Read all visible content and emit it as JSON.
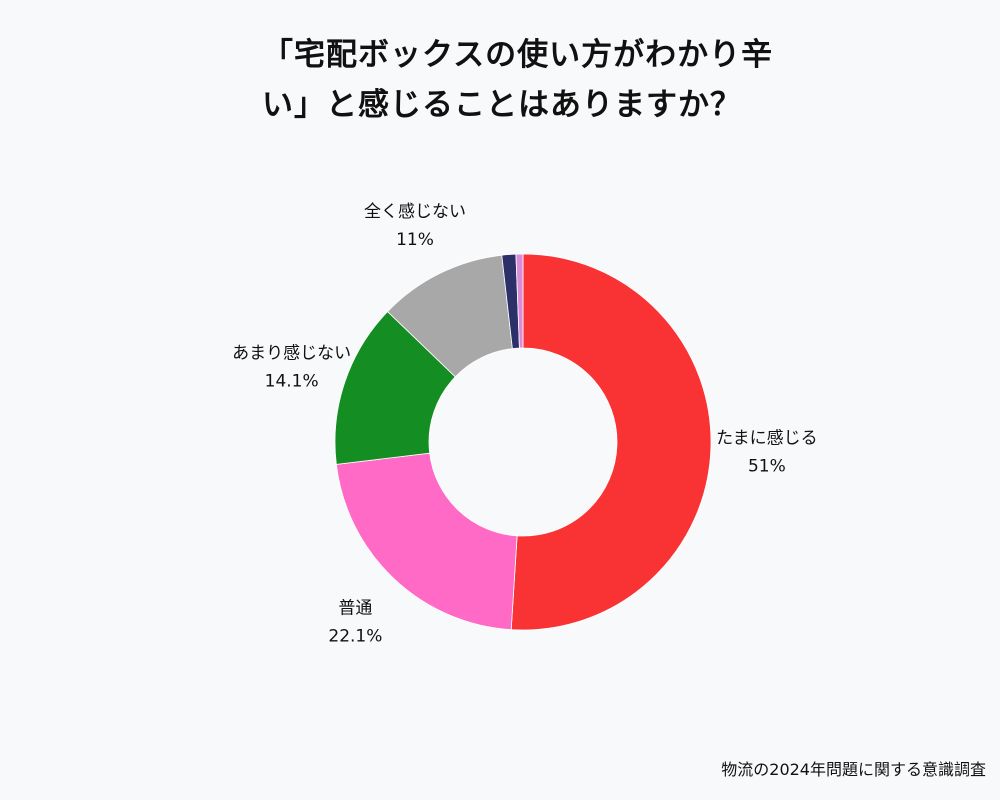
{
  "chart_data": {
    "type": "pie",
    "title": "「宅配ボックスの使い方がわかり辛い」と感じることはありますか？",
    "categories": [
      "たまに感じる",
      "普通",
      "あまり感じない",
      "全く感じない",
      "",
      ""
    ],
    "values": [
      51,
      22.1,
      14.1,
      11,
      1.2,
      0.6
    ],
    "value_labels": [
      "51%",
      "22.1%",
      "14.1%",
      "11%",
      "",
      ""
    ],
    "colors": [
      "#f93334",
      "#fe6ac6",
      "#148e22",
      "#a8a8a8",
      "#2b3069",
      "#d98cd9"
    ],
    "donut": true,
    "start_angle_deg": 0,
    "direction": "clockwise",
    "legend": "none"
  },
  "footer": {
    "source": "物流の2024年問題に関する意識調査"
  }
}
